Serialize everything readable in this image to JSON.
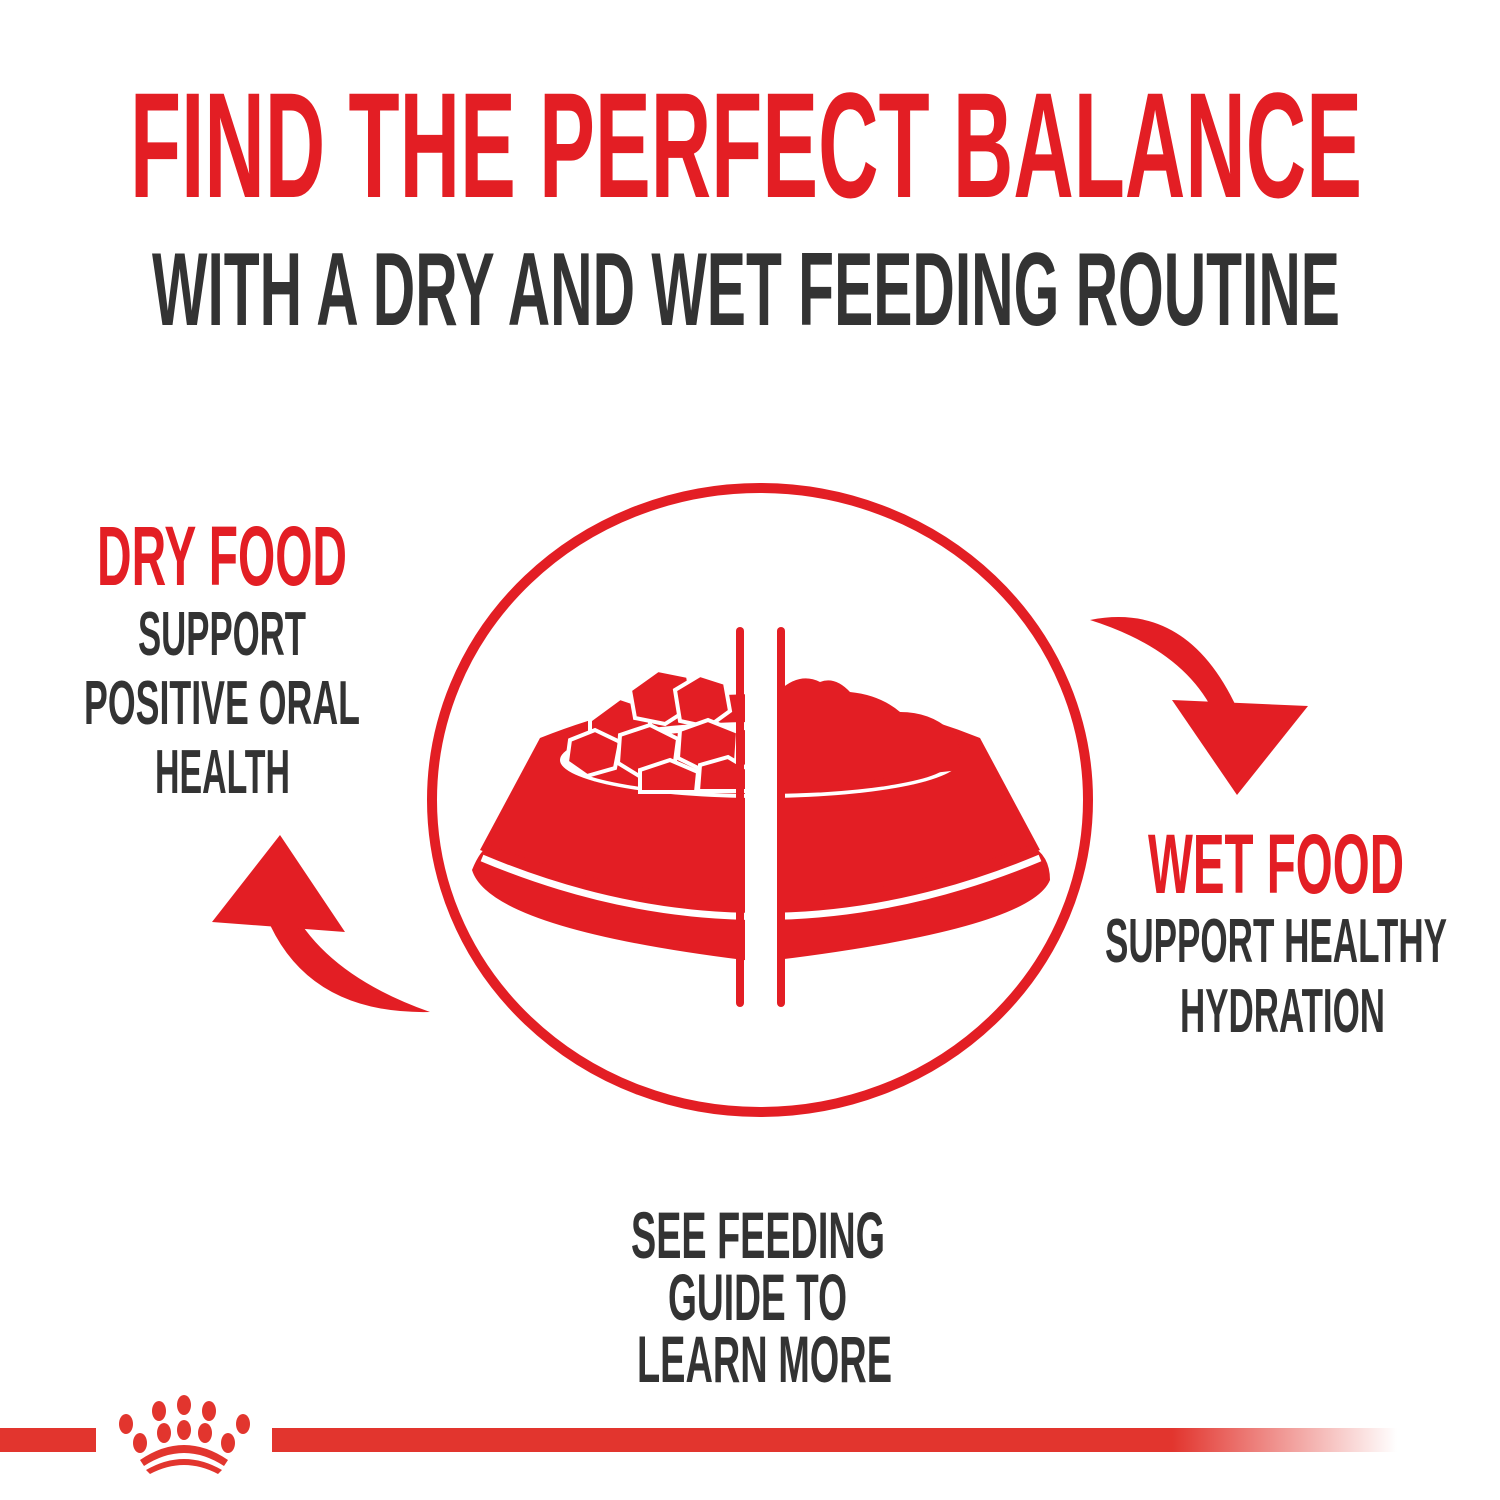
{
  "colors": {
    "brand_red": "#e31e24",
    "text_dark": "#333333",
    "bar_red": "#e2352e"
  },
  "headline": {
    "title": "FIND THE PERFECT BALANCE",
    "subtitle": "WITH A DRY AND WET FEEDING ROUTINE"
  },
  "dry_food": {
    "heading": "DRY FOOD",
    "lines": [
      "SUPPORT",
      "POSITIVE ORAL",
      "HEALTH"
    ]
  },
  "wet_food": {
    "heading": "WET FOOD",
    "lines": [
      "SUPPORT HEALTHY",
      "HYDRATION"
    ]
  },
  "cta": {
    "lines": [
      "SEE FEEDING",
      "GUIDE TO",
      "LEARN MORE"
    ]
  },
  "icons": {
    "center": "split-food-bowl-icon",
    "cycle_arrows": "curved-arrow-icon",
    "brand": "crown-logo"
  }
}
